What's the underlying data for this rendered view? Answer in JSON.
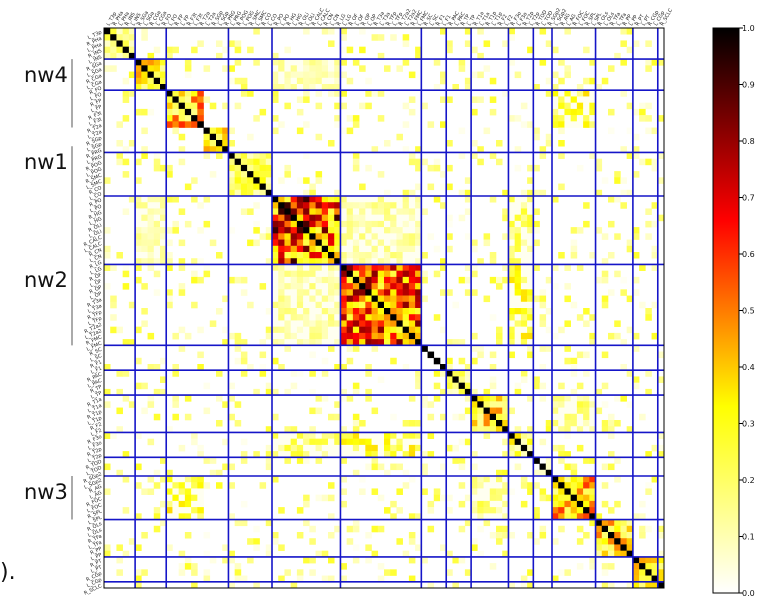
{
  "chart_data": {
    "type": "heatmap",
    "title": "",
    "xlabel": "",
    "ylabel": "",
    "n_regions": 90,
    "block_boundaries": [
      5,
      10,
      20,
      27,
      38,
      51,
      55,
      59,
      65,
      69,
      72,
      79,
      85,
      89
    ],
    "clusters": [
      {
        "start": 0,
        "end": 5,
        "base": 0.28
      },
      {
        "start": 5,
        "end": 10,
        "base": 0.42
      },
      {
        "start": 10,
        "end": 16,
        "base": 0.55
      },
      {
        "start": 16,
        "end": 20,
        "base": 0.5
      },
      {
        "start": 20,
        "end": 27,
        "base": 0.3
      },
      {
        "start": 27,
        "end": 38,
        "base": 0.78
      },
      {
        "start": 38,
        "end": 51,
        "base": 0.72
      },
      {
        "start": 51,
        "end": 55,
        "base": 0.05
      },
      {
        "start": 55,
        "end": 59,
        "base": 0.3
      },
      {
        "start": 59,
        "end": 65,
        "base": 0.45
      },
      {
        "start": 65,
        "end": 69,
        "base": 0.35
      },
      {
        "start": 69,
        "end": 72,
        "base": 0.1
      },
      {
        "start": 72,
        "end": 79,
        "base": 0.55
      },
      {
        "start": 79,
        "end": 85,
        "base": 0.45
      },
      {
        "start": 85,
        "end": 90,
        "base": 0.4
      }
    ],
    "cross_links": [
      {
        "a": [
          10,
          16
        ],
        "b": [
          72,
          79
        ],
        "v": 0.45
      },
      {
        "a": [
          27,
          38
        ],
        "b": [
          38,
          51
        ],
        "v": 0.22
      },
      {
        "a": [
          38,
          51
        ],
        "b": [
          65,
          69
        ],
        "v": 0.45
      },
      {
        "a": [
          27,
          38
        ],
        "b": [
          65,
          69
        ],
        "v": 0.35
      },
      {
        "a": [
          5,
          10
        ],
        "b": [
          27,
          38
        ],
        "v": 0.2
      },
      {
        "a": [
          59,
          65
        ],
        "b": [
          72,
          79
        ],
        "v": 0.3
      }
    ],
    "x_tick_labels": [
      "L_T3p",
      "R_PHa",
      "L_PHa",
      "R_INS",
      "L_INS",
      "R_SGa",
      "L_SGa",
      "R_CGa",
      "L_CGa",
      "R_FO",
      "L_FO",
      "R_FP",
      "L_FP",
      "R_F3t",
      "L_F3t",
      "R_T2a",
      "L_T2a",
      "R_SGp",
      "L_SGp",
      "R_PRG",
      "L_PRG",
      "R_POG",
      "L_POG",
      "R_SMC",
      "L_SMC",
      "R_CO",
      "L_CO",
      "R_PO",
      "L_PO",
      "R_HG",
      "L_HG",
      "R_OLi",
      "L_OLi",
      "R_CALC",
      "L_CALC",
      "R_CN",
      "L_CN",
      "R_LG",
      "L_LG",
      "R_OF",
      "L_OF",
      "R_OP",
      "L_OP",
      "R_T3a",
      "L_T3a",
      "R_TFp",
      "L_TFp",
      "R_T2a2",
      "L_T2a2",
      "R_FMC",
      "L_FMC",
      "R_SC",
      "L_SC",
      "R_F1",
      "L_F1",
      "R_PAC",
      "L_PAC",
      "R_TP",
      "L_TP",
      "R_T1a",
      "L_T1a",
      "R_T1p",
      "L_T1p",
      "R_F2",
      "L_F2",
      "R_F3o",
      "L_F3o",
      "R_T2p",
      "L_T2p",
      "R_TOD",
      "L_TOD",
      "R_SGp2",
      "L_SGp2",
      "R_AG",
      "L_AG",
      "R_FOC",
      "L_FOC",
      "R_SPL",
      "L_SPL",
      "R_OLs",
      "L_OLs",
      "R_TFa",
      "L_TFa",
      "R_PP",
      "L_PP",
      "R_PT",
      "L_PT",
      "R_CGp",
      "L_CGp",
      "R_SCLC"
    ],
    "y_tick_labels": [
      "L_T3p",
      "R_PHa",
      "L_PHa",
      "R_INS",
      "L_INS",
      "R_SGa",
      "L_SGa",
      "R_CGa",
      "L_CGa",
      "R_FO",
      "L_FO",
      "R_FP",
      "L_FP",
      "R_F3t",
      "L_F3t",
      "R_T2a",
      "L_T2a",
      "R_SGp",
      "L_SGp",
      "R_PRG",
      "L_PRG",
      "R_POG",
      "L_POG",
      "R_SMC",
      "L_SMC",
      "R_CO",
      "L_CO",
      "R_PO",
      "L_PO",
      "R_HG",
      "L_HG",
      "R_OLi",
      "L_OLi",
      "R_CALC",
      "L_CALC",
      "R_CN",
      "L_CN",
      "R_LG",
      "L_LG",
      "R_OF",
      "L_OF",
      "R_OP",
      "L_OP",
      "R_T3a",
      "L_T3a",
      "R_TFp",
      "L_TFp",
      "R_T2a2",
      "L_T2a2",
      "R_FMC",
      "L_FMC",
      "R_SC",
      "L_SC",
      "R_F1",
      "L_F1",
      "R_PAC",
      "L_PAC",
      "R_TP",
      "L_TP",
      "R_T1a",
      "L_T1a",
      "R_T1p",
      "L_T1p",
      "R_F2",
      "L_F2",
      "R_F3o",
      "L_F3o",
      "R_T2p",
      "L_T2p",
      "R_TOD",
      "L_TOD",
      "R_SGp2",
      "L_SGp2",
      "R_AG",
      "L_AG",
      "R_FOC",
      "L_FOC",
      "R_SPL",
      "L_SPL",
      "R_OLs",
      "L_OLs",
      "R_TFa",
      "L_TFa",
      "R_PP",
      "L_PP",
      "R_PT",
      "L_PT",
      "R_CGp",
      "L_CGp",
      "R_SCLC"
    ],
    "colorbar": {
      "min": 0.0,
      "max": 1.0,
      "ticks": [
        "0.0",
        "0.1",
        "0.2",
        "0.3",
        "0.4",
        "0.5",
        "0.6",
        "0.7",
        "0.8",
        "0.9",
        "1.0"
      ],
      "colormap": "hot_r"
    },
    "network_labels": [
      {
        "text": "nw4",
        "rows": [
          5,
          16
        ]
      },
      {
        "text": "nw1",
        "rows": [
          19,
          38
        ]
      },
      {
        "text": "nw2",
        "rows": [
          38,
          51
        ]
      },
      {
        "text": "nw3",
        "rows": [
          72,
          79
        ]
      }
    ],
    "grid_line_color": "#1515c8",
    "diagonal_value": 1.0
  },
  "fragment_text": ")."
}
